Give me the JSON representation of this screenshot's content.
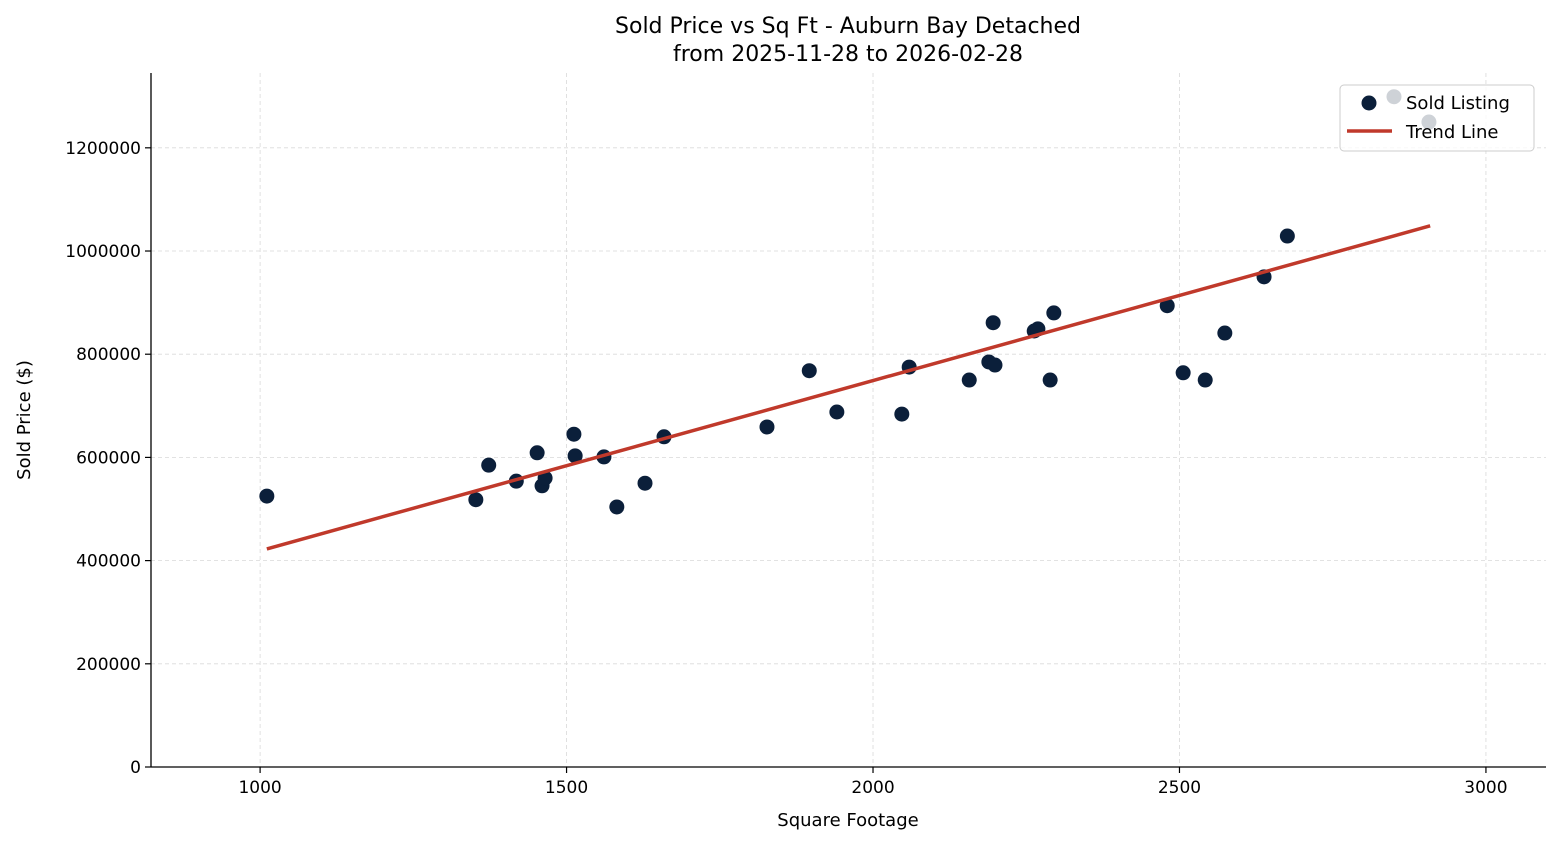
{
  "chart_data": {
    "type": "scatter",
    "title": "Sold Price vs Sq Ft - Auburn Bay Detached",
    "subtitle": "from 2025-11-28 to 2026-02-28",
    "xlabel": "Square Footage",
    "ylabel": "Sold Price ($)",
    "xlim": [
      822,
      3098
    ],
    "ylim": [
      0,
      1345000
    ],
    "xticks": [
      1000,
      1500,
      2000,
      2500,
      3000
    ],
    "yticks": [
      0,
      200000,
      400000,
      600000,
      800000,
      1000000,
      1200000
    ],
    "grid": true,
    "legend_position": "top-right",
    "colors": {
      "points": "#0b1f3a",
      "trend": "#c0392b"
    },
    "series": [
      {
        "name": "Sold Listing",
        "type": "scatter",
        "x": [
          1011,
          1352,
          1373,
          1418,
          1452,
          1460,
          1465,
          1512,
          1514,
          1561,
          1582,
          1628,
          1659,
          1827,
          1896,
          1941,
          2047,
          2059,
          2157,
          2189,
          2196,
          2199,
          2263,
          2269,
          2289,
          2295,
          2480,
          2506,
          2542,
          2574,
          2638,
          2676,
          2850,
          2907
        ],
        "y": [
          525000,
          518000,
          585000,
          554000,
          609000,
          545000,
          560000,
          645000,
          603000,
          601000,
          504000,
          550000,
          640000,
          659000,
          768000,
          688000,
          684000,
          775000,
          750000,
          785000,
          861000,
          779000,
          845000,
          849000,
          750000,
          880000,
          894000,
          764000,
          750000,
          841000,
          950000,
          1029000,
          1299000,
          1250000
        ]
      },
      {
        "name": "Trend Line",
        "type": "line",
        "x": [
          1011,
          2909
        ],
        "y": [
          422600,
          1048800
        ]
      }
    ]
  }
}
